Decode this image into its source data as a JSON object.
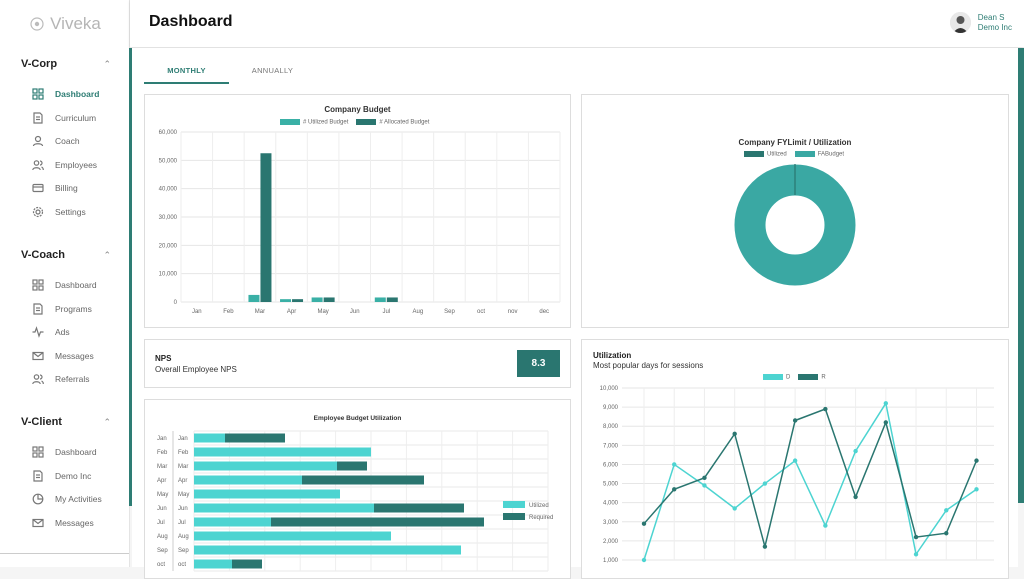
{
  "brand": {
    "name": "Viveka"
  },
  "header": {
    "title": "Dashboard",
    "user_name": "Dean S",
    "user_org": "Demo Inc"
  },
  "sidebar": {
    "sections": [
      {
        "title": "V-Corp",
        "items": [
          {
            "label": "Dashboard",
            "icon": "grid-icon"
          },
          {
            "label": "Curriculum",
            "icon": "document-icon"
          },
          {
            "label": "Coach",
            "icon": "person-icon"
          },
          {
            "label": "Employees",
            "icon": "people-icon"
          },
          {
            "label": "Billing",
            "icon": "card-icon"
          },
          {
            "label": "Settings",
            "icon": "gear-icon"
          }
        ]
      },
      {
        "title": "V-Coach",
        "items": [
          {
            "label": "Dashboard",
            "icon": "grid-icon"
          },
          {
            "label": "Programs",
            "icon": "document-icon"
          },
          {
            "label": "Ads",
            "icon": "pulse-icon"
          },
          {
            "label": "Messages",
            "icon": "mail-icon"
          },
          {
            "label": "Referrals",
            "icon": "people-icon"
          }
        ]
      },
      {
        "title": "V-Client",
        "items": [
          {
            "label": "Dashboard",
            "icon": "grid-icon"
          },
          {
            "label": "Demo Inc",
            "icon": "document-icon"
          },
          {
            "label": "My Activities",
            "icon": "pie-icon"
          },
          {
            "label": "Messages",
            "icon": "mail-icon"
          }
        ]
      }
    ]
  },
  "tabs": {
    "monthly": "MONTHLY",
    "annually": "ANNUALLY"
  },
  "colors": {
    "teal_light": "#3ab0a6",
    "teal_dark": "#2a7670",
    "cyan": "#4dd4d1",
    "accent": "#2e7d74"
  },
  "nps": {
    "title": "NPS",
    "subtitle": "Overall Employee NPS",
    "value": "8.3"
  },
  "chart_data": [
    {
      "type": "bar",
      "title": "Company Budget",
      "categories": [
        "Jan",
        "Feb",
        "Mar",
        "Apr",
        "May",
        "Jun",
        "Jul",
        "Aug",
        "Sep",
        "oct",
        "nov",
        "dec"
      ],
      "yticks": [
        "0",
        "10,000",
        "20,000",
        "30,000",
        "40,000",
        "50,000",
        "60,000"
      ],
      "ylim": [
        0,
        60000
      ],
      "series": [
        {
          "name": "# Utilized Budget",
          "values": [
            0,
            0,
            2500,
            1000,
            1600,
            0,
            1600,
            0,
            0,
            0,
            0,
            0
          ]
        },
        {
          "name": "# Allocated Budget",
          "values": [
            0,
            0,
            52500,
            1000,
            1600,
            0,
            1600,
            0,
            0,
            0,
            0,
            0
          ]
        }
      ]
    },
    {
      "type": "pie",
      "title": "Company FYLimit / Utilization",
      "labels": [
        "Utilized",
        "FABudget"
      ],
      "values": [
        0.1,
        100
      ]
    },
    {
      "type": "bar",
      "title": "Employee Budget Utilization",
      "categories": [
        "Jan",
        "Feb",
        "Mar",
        "Apr",
        "May",
        "Jun",
        "Jul",
        "Aug",
        "Sep",
        "oct"
      ],
      "row_labels": [
        "Jan",
        "Feb",
        "Mar",
        "Apr",
        "May",
        "Jun",
        "Jul",
        "Aug",
        "Sep",
        "oct"
      ],
      "series": [
        {
          "name": "Utilized",
          "values": [
            31,
            177,
            143,
            108,
            146,
            180,
            77,
            197,
            267,
            38
          ]
        },
        {
          "name": "Required",
          "values": [
            60,
            0,
            30,
            122,
            0,
            90,
            213,
            0,
            0,
            30
          ]
        }
      ]
    },
    {
      "type": "line",
      "title": "Utilization",
      "subtitle": "Most popular days for sessions",
      "yticks": [
        "1,000",
        "2,000",
        "3,000",
        "4,000",
        "5,000",
        "6,000",
        "7,000",
        "8,000",
        "9,000",
        "10,000"
      ],
      "ylim": [
        1000,
        10000
      ],
      "series": [
        {
          "name": "D",
          "values": [
            1000,
            6000,
            4900,
            3700,
            5000,
            6200,
            2800,
            6700,
            9200,
            1300,
            3600,
            4700
          ]
        },
        {
          "name": "R",
          "values": [
            2900,
            4700,
            5300,
            7600,
            1700,
            8300,
            8900,
            4300,
            8200,
            2200,
            2400,
            6200
          ]
        }
      ]
    }
  ]
}
